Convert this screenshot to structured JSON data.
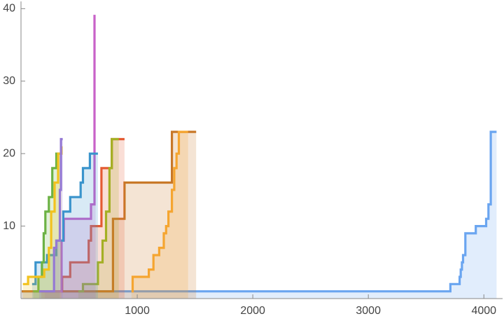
{
  "chart_data": {
    "type": "line",
    "step": "after",
    "filled": true,
    "xlim": [
      0,
      4150
    ],
    "ylim": [
      0,
      41
    ],
    "xticks": [
      1000,
      2000,
      3000,
      4000
    ],
    "yticks": [
      10,
      20,
      30,
      40
    ],
    "series": [
      {
        "color": "#6aa5f0",
        "x": [
          0,
          3710,
          3790,
          3800,
          3810,
          3820,
          3840,
          3930,
          4020,
          4040,
          4060,
          4110
        ],
        "values": [
          1,
          2,
          3,
          4,
          5,
          6,
          9,
          10,
          11,
          13,
          23,
          23
        ]
      },
      {
        "color": "#c87828",
        "x": [
          0,
          790,
          890,
          1300,
          1510
        ],
        "values": [
          1,
          11,
          16,
          23,
          23
        ]
      },
      {
        "color": "#f5a530",
        "x": [
          950,
          960,
          1100,
          1140,
          1190,
          1230,
          1250,
          1270,
          1300,
          1320,
          1340,
          1360,
          1440
        ],
        "values": [
          1,
          3,
          4,
          6,
          7,
          9,
          10,
          12,
          15,
          18,
          20,
          23,
          23
        ]
      },
      {
        "color": "#e45a32",
        "x": [
          170,
          350,
          420,
          580,
          600,
          690,
          780,
          890
        ],
        "values": [
          1,
          3,
          5,
          8,
          10,
          18,
          22,
          22
        ]
      },
      {
        "color": "#a4b024",
        "x": [
          490,
          530,
          660,
          700,
          730,
          760,
          780,
          840
        ],
        "values": [
          1,
          2,
          5,
          8,
          12,
          18,
          22,
          22
        ]
      },
      {
        "color": "#c862c8",
        "x": [
          200,
          345,
          365,
          600,
          630,
          640
        ],
        "values": [
          1,
          8,
          11,
          13,
          39,
          39
        ]
      },
      {
        "color": "#3a94cc",
        "x": [
          90,
          120,
          220,
          300,
          360,
          420,
          510,
          530,
          590,
          660
        ],
        "values": [
          2,
          5,
          6,
          8,
          12,
          14,
          16,
          18,
          20,
          20
        ]
      },
      {
        "color": "#6cb244",
        "x": [
          100,
          145,
          175,
          190,
          205,
          235,
          265,
          300,
          330
        ],
        "values": [
          1,
          3,
          5,
          9,
          12,
          14,
          18,
          20,
          20
        ]
      },
      {
        "color": "#f2c21e",
        "x": [
          10,
          55,
          195,
          235,
          255,
          285,
          315,
          345
        ],
        "values": [
          2,
          3,
          4,
          7,
          12,
          16,
          20,
          21
        ]
      },
      {
        "color": "#9478d4",
        "x": [
          150,
          280,
          300,
          330,
          340,
          355
        ],
        "values": [
          1,
          7,
          8,
          15,
          22,
          22
        ]
      }
    ]
  }
}
